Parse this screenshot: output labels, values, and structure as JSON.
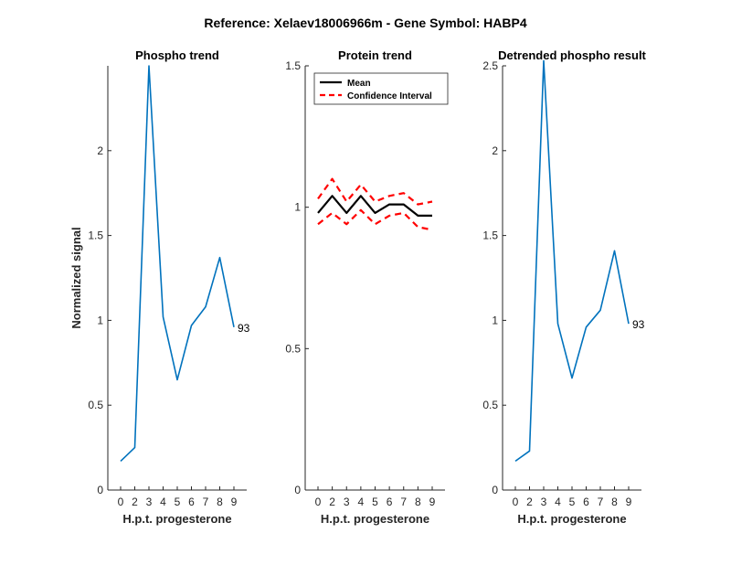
{
  "figure_title": "Reference:  Xelaev18006966m - Gene Symbol:  HABP4",
  "chart_data": [
    {
      "type": "line",
      "title": "Phospho trend",
      "xlabel": "H.p.t. progesterone",
      "ylabel": "Normalized signal",
      "categories": [
        "0",
        "2",
        "3",
        "4",
        "5",
        "6",
        "7",
        "8",
        "9"
      ],
      "ylim": [
        0,
        2.5
      ],
      "yticks": [
        "0",
        "0.5",
        "1",
        "1.5",
        "2"
      ],
      "series": [
        {
          "color": "#0072BD",
          "values": [
            0.17,
            0.25,
            2.5,
            1.02,
            0.65,
            0.97,
            1.08,
            1.37,
            0.96
          ]
        }
      ],
      "end_label": "93",
      "grid": false
    },
    {
      "type": "line",
      "title": "Protein trend",
      "xlabel": "H.p.t. progesterone",
      "ylabel": "",
      "categories": [
        "0",
        "2",
        "3",
        "4",
        "5",
        "6",
        "7",
        "8",
        "9"
      ],
      "ylim": [
        0,
        1.5
      ],
      "yticks": [
        "0",
        "0.5",
        "1",
        "1.5"
      ],
      "series": [
        {
          "name": "Mean",
          "color": "#000000",
          "style": "solid",
          "values": [
            0.98,
            1.04,
            0.98,
            1.04,
            0.98,
            1.01,
            1.01,
            0.97,
            0.97
          ]
        },
        {
          "name": "Confidence Interval",
          "color": "#ff0000",
          "style": "dashed",
          "values": [
            1.03,
            1.1,
            1.02,
            1.08,
            1.02,
            1.04,
            1.05,
            1.01,
            1.02
          ]
        },
        {
          "name": "",
          "color": "#ff0000",
          "style": "dashed",
          "values": [
            0.94,
            0.98,
            0.94,
            0.99,
            0.94,
            0.97,
            0.98,
            0.93,
            0.92
          ]
        }
      ],
      "legend": {
        "location": "top-left",
        "entries": [
          "Mean",
          "Confidence Interval"
        ]
      },
      "grid": false
    },
    {
      "type": "line",
      "title": "Detrended phospho result",
      "xlabel": "H.p.t. progesterone",
      "ylabel": "",
      "categories": [
        "0",
        "2",
        "3",
        "4",
        "5",
        "6",
        "7",
        "8",
        "9"
      ],
      "ylim": [
        0,
        2.5
      ],
      "yticks": [
        "0",
        "0.5",
        "1",
        "1.5",
        "2",
        "2.5"
      ],
      "series": [
        {
          "color": "#0072BD",
          "values": [
            0.17,
            0.23,
            2.53,
            0.98,
            0.66,
            0.96,
            1.06,
            1.41,
            0.98
          ]
        }
      ],
      "end_label": "93",
      "grid": false
    }
  ]
}
